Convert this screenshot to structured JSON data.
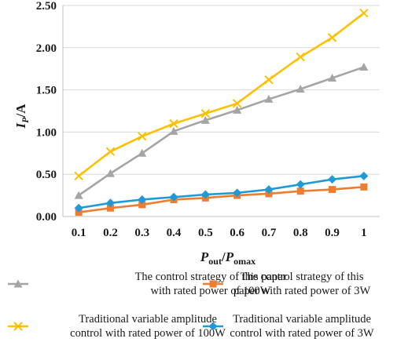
{
  "chart_data": {
    "type": "line",
    "title": "",
    "xlabel": {
      "main": "P",
      "sub1": "out",
      "sep": "/",
      "main2": "P",
      "sub2": "omax"
    },
    "ylabel": {
      "main": "I",
      "sub": "P",
      "unit": "/A"
    },
    "x": [
      0.1,
      0.2,
      0.3,
      0.4,
      0.5,
      0.6,
      0.7,
      0.8,
      0.9,
      1
    ],
    "x_tick_labels": [
      "0.1",
      "0.2",
      "0.3",
      "0.4",
      "0.5",
      "0.6",
      "0.7",
      "0.8",
      "0.9",
      "1"
    ],
    "ylim": [
      0,
      2.5
    ],
    "y_ticks": [
      0,
      0.5,
      1.0,
      1.5,
      2.0,
      2.5
    ],
    "y_tick_labels": [
      "0.00",
      "0.50",
      "1.00",
      "1.50",
      "2.00",
      "2.50"
    ],
    "grid": true,
    "legend_position": "bottom",
    "series": [
      {
        "name_lines": [
          "The control strategy of this paper",
          "with rated power of 100W"
        ],
        "color": "#a5a5a5",
        "marker": "triangle",
        "values": [
          0.25,
          0.51,
          0.75,
          1.01,
          1.14,
          1.26,
          1.39,
          1.51,
          1.64,
          1.77
        ]
      },
      {
        "name_lines": [
          "The control strategy of this",
          "paper with rated power of 3W"
        ],
        "color": "#ed7d31",
        "marker": "square",
        "values": [
          0.05,
          0.1,
          0.14,
          0.2,
          0.22,
          0.25,
          0.27,
          0.3,
          0.32,
          0.35
        ]
      },
      {
        "name_lines": [
          "Traditional variable amplitude",
          "control with rated power of 100W"
        ],
        "color": "#ffc000",
        "marker": "x",
        "values": [
          0.48,
          0.77,
          0.95,
          1.1,
          1.22,
          1.34,
          1.62,
          1.89,
          2.12,
          2.41
        ]
      },
      {
        "name_lines": [
          "Traditional variable amplitude",
          "control with rated power of 3W"
        ],
        "color": "#1f9ad6",
        "marker": "diamond",
        "values": [
          0.1,
          0.16,
          0.2,
          0.23,
          0.26,
          0.28,
          0.32,
          0.38,
          0.44,
          0.48
        ]
      }
    ]
  }
}
